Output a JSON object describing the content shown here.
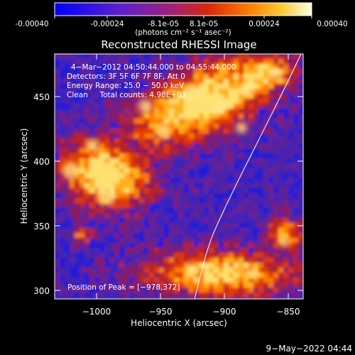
{
  "colorbar": {
    "tick_labels": [
      "-0.00040",
      "-0.00024",
      "-8.1e-05",
      "8.1e-05",
      "0.00024",
      "0.00040"
    ],
    "unit_label": "(photons cm⁻² s⁻¹ asec⁻²)",
    "colors": [
      "#0000ff",
      "#5a1fd0",
      "#a0207c",
      "#d8280a",
      "#ff7a00",
      "#ffc832",
      "#ffffe6"
    ]
  },
  "plot": {
    "title": "Reconstructed RHESSI Image",
    "x_axis_label": "Heliocentric X (arcsec)",
    "y_axis_label": "Heliocentric Y (arcsec)",
    "x_ticks": [
      "−1000",
      "−950",
      "−900",
      "−850"
    ],
    "y_ticks": [
      "450",
      "400",
      "350",
      "300"
    ],
    "info_lines": [
      "4−Mar−2012 04:50:44.000 to 04:55:44.000",
      "Detectors: 3F 5F 6F 7F 8F, Att 0",
      "Energy Range: 25.0 − 50.0 keV",
      "Clean     Total counts: 4.98E+03"
    ],
    "peak_label": "Position of Peak = [−978,372]"
  },
  "footer": {
    "date": "9−May−2022 04:44"
  }
}
